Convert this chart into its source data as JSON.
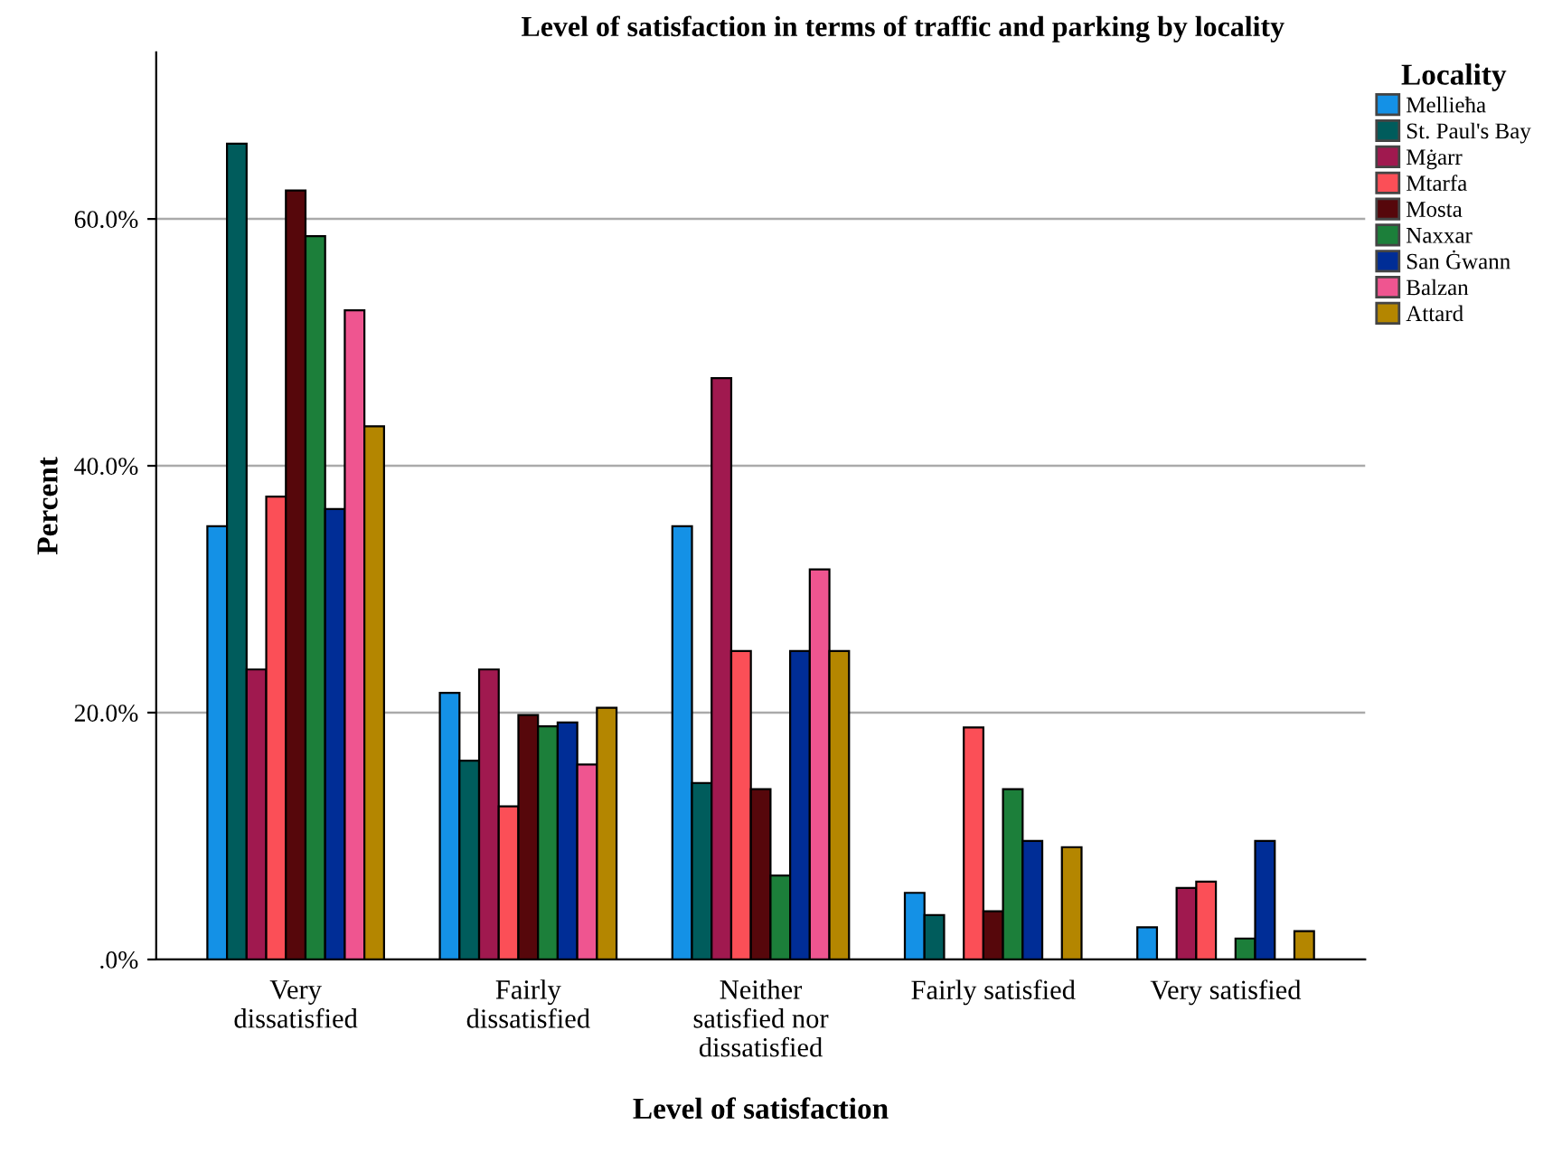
{
  "chart_data": {
    "type": "bar",
    "title": "Level of satisfaction in terms of traffic and parking by locality",
    "xlabel": "Level of satisfaction",
    "ylabel": "Percent",
    "legend_title": "Locality",
    "categories": [
      "Very\ndissatisfied",
      "Fairly\ndissatisfied",
      "Neither\nsatisfied nor\ndissatisfied",
      "Fairly satisfied",
      "Very satisfied"
    ],
    "series": [
      {
        "name": "Mellieħa",
        "color": "#1491e6",
        "values": [
          35.1,
          21.6,
          35.1,
          5.4,
          2.6
        ]
      },
      {
        "name": "St. Paul's Bay",
        "color": "#005c5c",
        "values": [
          66.1,
          16.1,
          14.3,
          3.6,
          null
        ]
      },
      {
        "name": "Mġarr",
        "color": "#a0194f",
        "values": [
          23.5,
          23.5,
          47.1,
          null,
          5.8
        ]
      },
      {
        "name": "Mtarfa",
        "color": "#fb4f57",
        "values": [
          37.5,
          12.4,
          25.0,
          18.8,
          6.3
        ]
      },
      {
        "name": "Mosta",
        "color": "#56070b",
        "values": [
          62.3,
          19.8,
          13.8,
          3.9,
          null
        ]
      },
      {
        "name": "Naxxar",
        "color": "#1c7f3a",
        "values": [
          58.6,
          18.9,
          6.8,
          13.8,
          1.7
        ]
      },
      {
        "name": "San Ġwann",
        "color": "#002d96",
        "values": [
          36.5,
          19.2,
          25.0,
          9.6,
          9.6
        ]
      },
      {
        "name": "Balzan",
        "color": "#ef5590",
        "values": [
          52.6,
          15.8,
          31.6,
          null,
          null
        ]
      },
      {
        "name": "Attard",
        "color": "#b48600",
        "values": [
          43.2,
          20.4,
          25.0,
          9.1,
          2.3
        ]
      }
    ],
    "ylim": [
      0,
      73.5
    ],
    "yticks": [
      {
        "value": 0,
        "label": ".0%"
      },
      {
        "value": 20,
        "label": "20.0%"
      },
      {
        "value": 40,
        "label": "40.0%"
      },
      {
        "value": 60,
        "label": "60.0%"
      }
    ],
    "grid": "y",
    "legend": "right"
  }
}
